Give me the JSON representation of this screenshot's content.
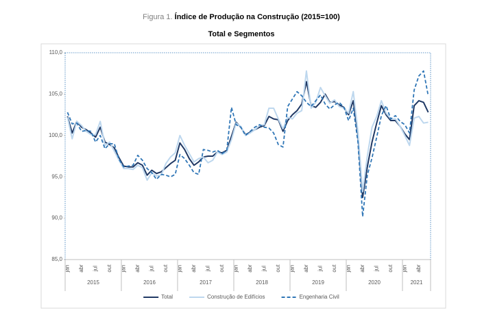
{
  "chart_data": {
    "type": "line",
    "figure_label": "Figura 1.",
    "title": "Índice de Produção na Construção (2015=100)",
    "subtitle": "Total e Segmentos",
    "categories": [
      "jan",
      null,
      null,
      "abr",
      null,
      null,
      "jul",
      null,
      null,
      "out",
      null,
      null,
      "jan",
      null,
      null,
      "abr",
      null,
      null,
      "jul",
      null,
      null,
      "out",
      null,
      null,
      "jan",
      null,
      null,
      "abr",
      null,
      null,
      "jul",
      null,
      null,
      "out",
      null,
      null,
      "jan",
      null,
      null,
      "abr",
      null,
      null,
      "jul",
      null,
      null,
      "out",
      null,
      null,
      "jan",
      null,
      null,
      "abr",
      null,
      null,
      "jul",
      null,
      null,
      "out",
      null,
      null,
      "jan",
      null,
      null,
      "abr",
      null,
      null,
      "jul",
      null,
      null,
      "out",
      null,
      null,
      "jan",
      null,
      null,
      "abr",
      null,
      null
    ],
    "category_groups": [
      "2015",
      "2016",
      "2017",
      "2018",
      "2019",
      "2020",
      "2021"
    ],
    "ylim": [
      85,
      110
    ],
    "yticks": [
      {
        "value": 85,
        "label": "85,0"
      },
      {
        "value": 90,
        "label": "90,0"
      },
      {
        "value": 95,
        "label": "95,0"
      },
      {
        "value": 100,
        "label": "100,0"
      },
      {
        "value": 105,
        "label": "105,0"
      },
      {
        "value": 110,
        "label": "110,0"
      }
    ],
    "grid": false,
    "legend": "bottom",
    "series": [
      {
        "name": "Total",
        "color": "#1f3864",
        "line_style": "solid",
        "values": [
          102.3,
          100.3,
          101.7,
          101.0,
          100.7,
          100.3,
          99.8,
          101.0,
          99.2,
          98.9,
          98.5,
          97.3,
          96.3,
          96.2,
          96.2,
          96.7,
          96.4,
          95.2,
          95.8,
          95.4,
          95.6,
          96.1,
          96.6,
          97.0,
          99.1,
          98.3,
          97.2,
          96.4,
          96.8,
          97.4,
          97.5,
          97.5,
          98.0,
          97.9,
          98.2,
          99.9,
          101.6,
          101.0,
          100.1,
          100.4,
          100.7,
          101.0,
          101.2,
          102.3,
          102.0,
          101.9,
          100.5,
          101.8,
          102.5,
          103.0,
          103.8,
          106.5,
          103.6,
          103.4,
          104.0,
          105.0,
          104.0,
          104.1,
          103.7,
          103.4,
          102.5,
          104.2,
          100.0,
          92.5,
          96.2,
          99.2,
          101.5,
          103.6,
          102.5,
          101.8,
          101.8,
          101.1,
          100.2,
          99.5,
          103.6,
          104.2,
          104.0,
          102.8
        ]
      },
      {
        "name": "Construção de Edifícios",
        "color": "#bdd7ee",
        "line_style": "solid",
        "values": [
          102.2,
          99.6,
          101.7,
          101.2,
          100.5,
          100.1,
          100.1,
          101.7,
          98.8,
          99.2,
          98.1,
          97.0,
          96.0,
          96.0,
          95.9,
          96.4,
          96.1,
          94.6,
          95.5,
          95.1,
          95.2,
          96.6,
          97.4,
          97.9,
          100.0,
          98.8,
          97.8,
          96.8,
          97.2,
          97.4,
          96.7,
          97.0,
          98.0,
          97.7,
          98.0,
          99.5,
          101.5,
          101.1,
          100.0,
          100.3,
          100.7,
          101.2,
          101.3,
          103.3,
          103.3,
          102.0,
          100.8,
          102.2,
          102.0,
          102.7,
          103.0,
          107.8,
          103.3,
          104.0,
          105.8,
          104.8,
          103.9,
          104.3,
          103.5,
          103.3,
          102.7,
          105.3,
          100.5,
          93.2,
          97.5,
          101.0,
          102.3,
          104.2,
          102.7,
          102.0,
          102.0,
          101.1,
          100.0,
          98.8,
          102.1,
          102.3,
          101.5,
          101.6
        ]
      },
      {
        "name": "Engenharia Civil",
        "color": "#2e75b6",
        "line_style": "dashed",
        "values": [
          102.8,
          101.4,
          101.5,
          100.5,
          100.6,
          100.5,
          99.2,
          100.0,
          98.4,
          99.0,
          99.0,
          97.1,
          96.2,
          96.3,
          96.4,
          97.6,
          97.0,
          96.0,
          95.5,
          94.7,
          95.3,
          95.2,
          95.0,
          95.3,
          97.7,
          97.2,
          96.4,
          95.5,
          95.3,
          98.3,
          98.2,
          98.0,
          98.2,
          97.8,
          98.2,
          103.4,
          101.3,
          101.0,
          100.0,
          100.5,
          101.0,
          101.3,
          101.0,
          100.9,
          100.3,
          98.9,
          98.6,
          103.5,
          104.4,
          105.3,
          104.8,
          104.0,
          103.5,
          104.2,
          104.9,
          103.8,
          103.2,
          103.7,
          104.0,
          103.4,
          101.8,
          103.3,
          99.2,
          90.2,
          95.2,
          97.3,
          99.8,
          102.4,
          103.6,
          102.0,
          102.4,
          101.7,
          101.3,
          100.3,
          105.5,
          107.2,
          107.8,
          104.8
        ]
      }
    ]
  }
}
